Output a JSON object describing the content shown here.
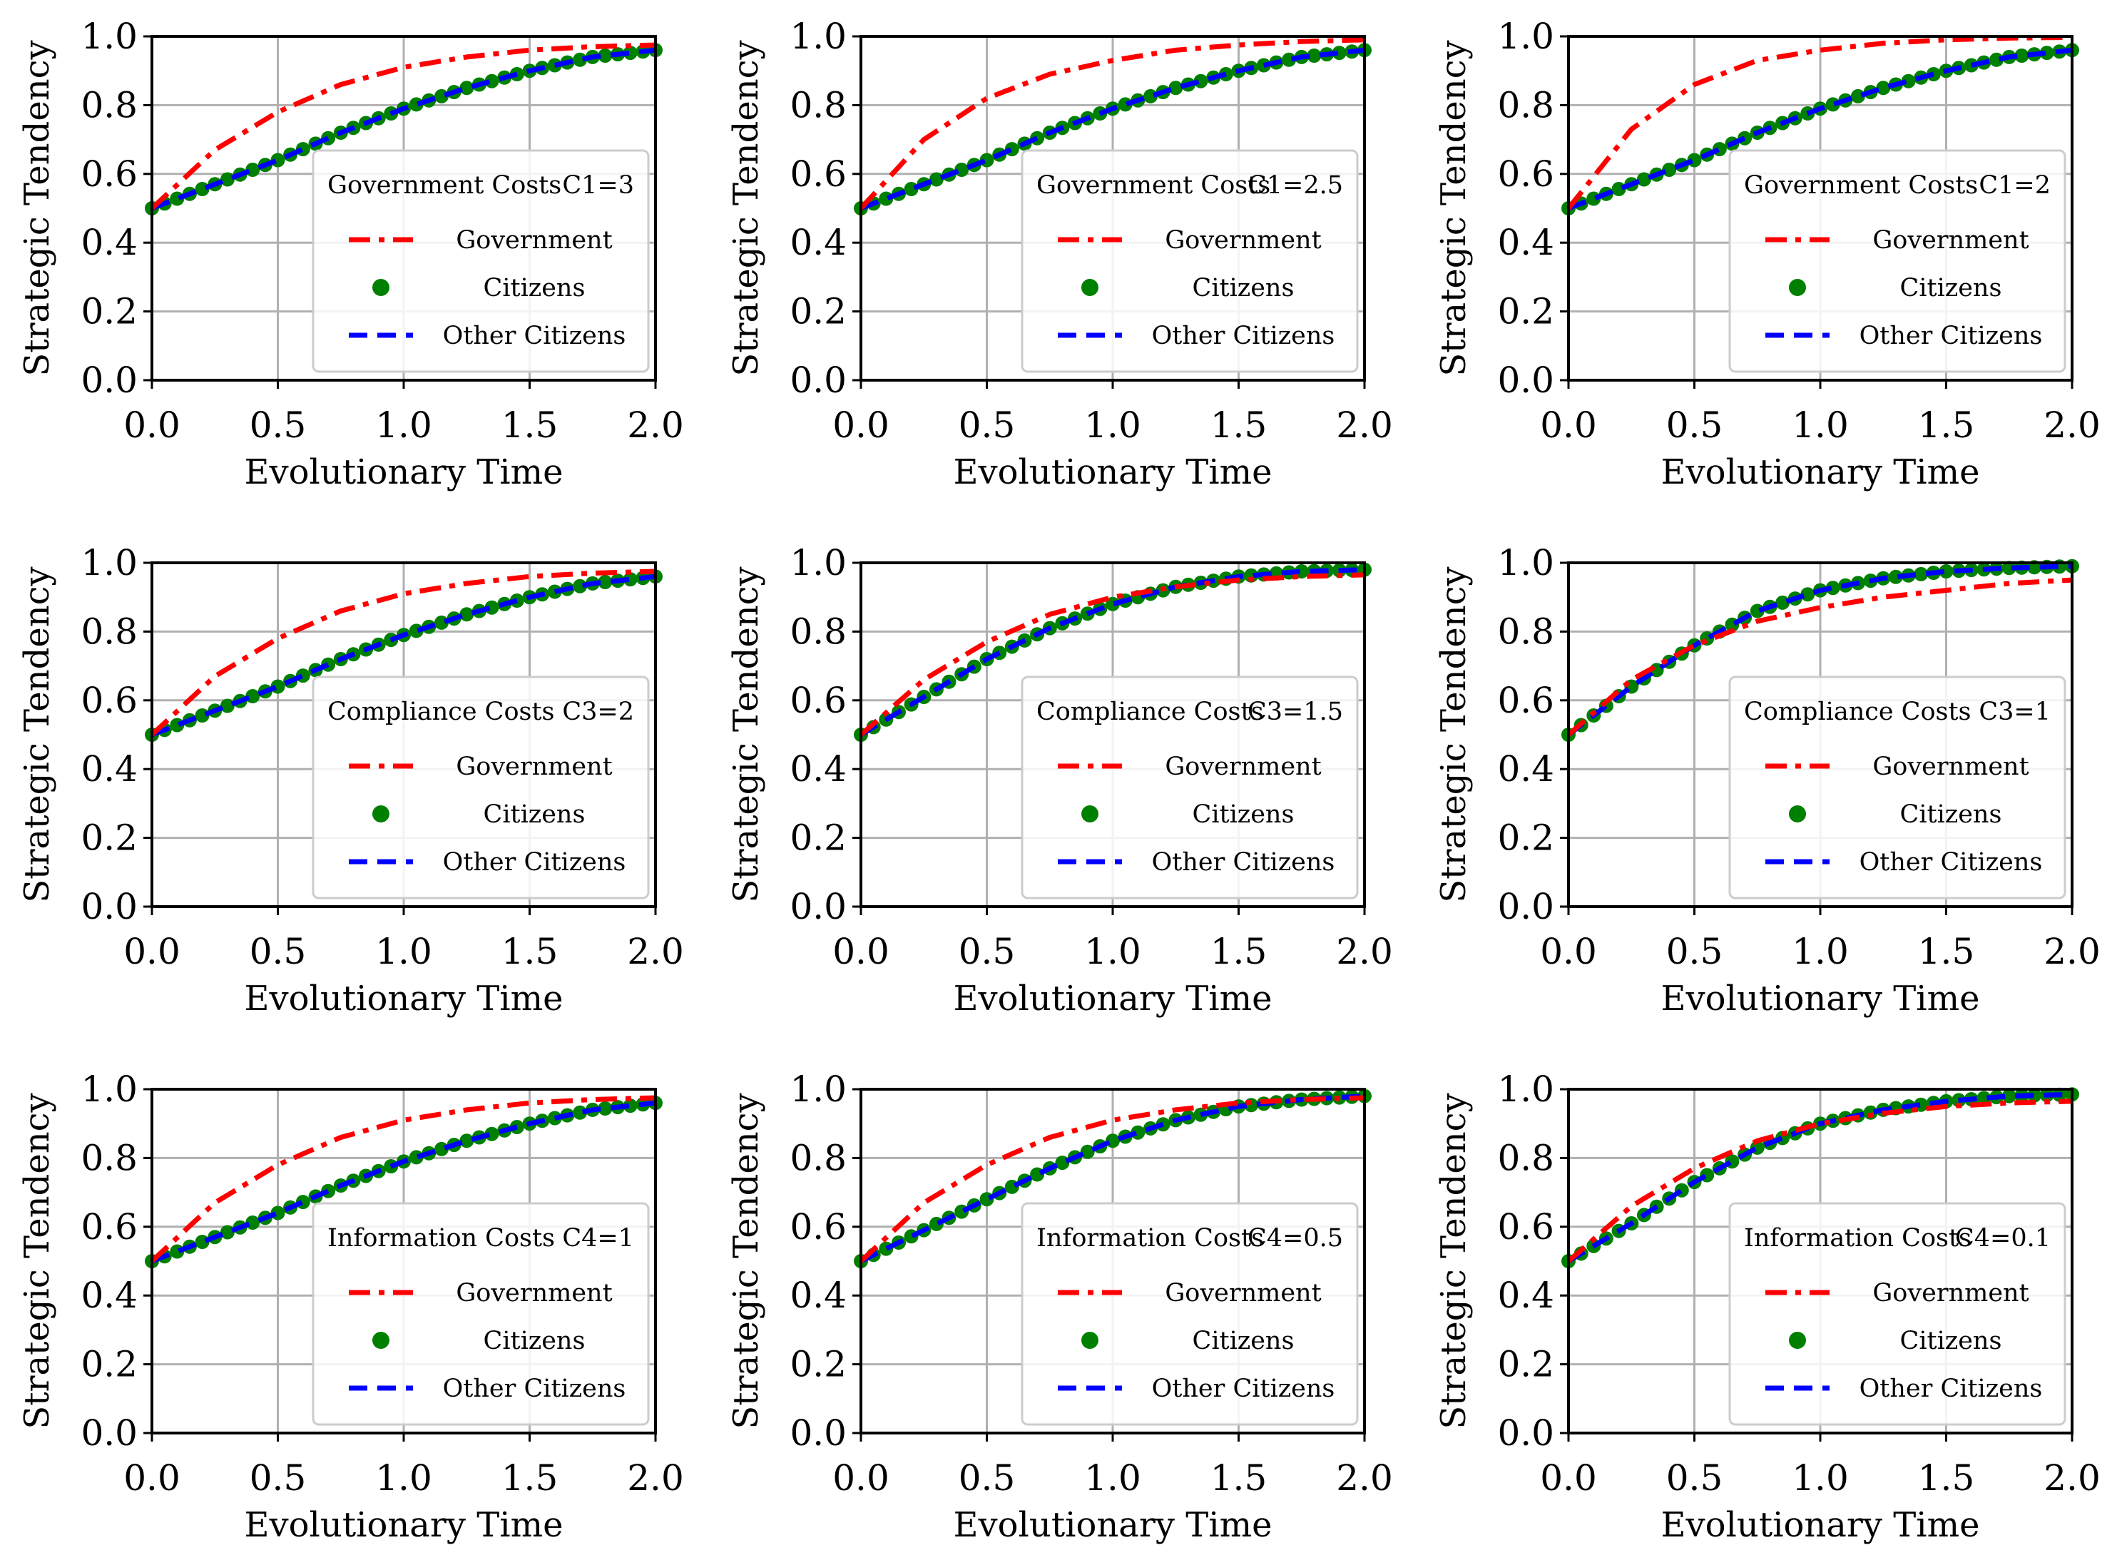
{
  "figure": {
    "xlabel": "Evolutionary Time",
    "ylabel": "Strategic Tendency",
    "xticks": [
      "0.0",
      "0.5",
      "1.0",
      "1.5",
      "2.0"
    ],
    "yticks": [
      "0.0",
      "0.2",
      "0.4",
      "0.6",
      "0.8",
      "1.0"
    ],
    "series_names": [
      "Government",
      "Citizens",
      "Other Citizens"
    ],
    "colors": {
      "government": "#ff0000",
      "citizens": "#008000",
      "other_citizens": "#0000ff"
    }
  },
  "chart_data": [
    {
      "type": "line",
      "legend_title": "Government Costs",
      "param": "C1=3",
      "xlim": [
        0,
        2
      ],
      "ylim": [
        0,
        1
      ],
      "x": [
        0,
        0.25,
        0.5,
        0.75,
        1.0,
        1.25,
        1.5,
        1.75,
        2.0
      ],
      "series": [
        {
          "name": "Government",
          "values": [
            0.5,
            0.67,
            0.78,
            0.86,
            0.91,
            0.94,
            0.96,
            0.97,
            0.975
          ]
        },
        {
          "name": "Citizens",
          "values": [
            0.5,
            0.57,
            0.64,
            0.72,
            0.79,
            0.85,
            0.9,
            0.94,
            0.96
          ]
        },
        {
          "name": "Other Citizens",
          "values": [
            0.5,
            0.57,
            0.64,
            0.72,
            0.79,
            0.85,
            0.9,
            0.94,
            0.96
          ]
        }
      ]
    },
    {
      "type": "line",
      "legend_title": "Government Costs",
      "param": "C1=2.5",
      "xlim": [
        0,
        2
      ],
      "ylim": [
        0,
        1
      ],
      "x": [
        0,
        0.25,
        0.5,
        0.75,
        1.0,
        1.25,
        1.5,
        1.75,
        2.0
      ],
      "series": [
        {
          "name": "Government",
          "values": [
            0.5,
            0.7,
            0.82,
            0.89,
            0.93,
            0.96,
            0.975,
            0.985,
            0.99
          ]
        },
        {
          "name": "Citizens",
          "values": [
            0.5,
            0.57,
            0.64,
            0.72,
            0.79,
            0.85,
            0.9,
            0.94,
            0.96
          ]
        },
        {
          "name": "Other Citizens",
          "values": [
            0.5,
            0.57,
            0.64,
            0.72,
            0.79,
            0.85,
            0.9,
            0.94,
            0.96
          ]
        }
      ]
    },
    {
      "type": "line",
      "legend_title": "Government Costs",
      "param": "C1=2",
      "xlim": [
        0,
        2
      ],
      "ylim": [
        0,
        1
      ],
      "x": [
        0,
        0.25,
        0.5,
        0.75,
        1.0,
        1.25,
        1.5,
        1.75,
        2.0
      ],
      "series": [
        {
          "name": "Government",
          "values": [
            0.5,
            0.73,
            0.86,
            0.93,
            0.96,
            0.98,
            0.99,
            0.995,
            0.997
          ]
        },
        {
          "name": "Citizens",
          "values": [
            0.5,
            0.57,
            0.64,
            0.72,
            0.79,
            0.85,
            0.9,
            0.94,
            0.96
          ]
        },
        {
          "name": "Other Citizens",
          "values": [
            0.5,
            0.57,
            0.64,
            0.72,
            0.79,
            0.85,
            0.9,
            0.94,
            0.96
          ]
        }
      ]
    },
    {
      "type": "line",
      "legend_title": "Compliance Costs",
      "param": "C3=2",
      "xlim": [
        0,
        2
      ],
      "ylim": [
        0,
        1
      ],
      "x": [
        0,
        0.25,
        0.5,
        0.75,
        1.0,
        1.25,
        1.5,
        1.75,
        2.0
      ],
      "series": [
        {
          "name": "Government",
          "values": [
            0.5,
            0.67,
            0.78,
            0.86,
            0.91,
            0.94,
            0.96,
            0.97,
            0.975
          ]
        },
        {
          "name": "Citizens",
          "values": [
            0.5,
            0.57,
            0.64,
            0.72,
            0.79,
            0.85,
            0.9,
            0.94,
            0.96
          ]
        },
        {
          "name": "Other Citizens",
          "values": [
            0.5,
            0.57,
            0.64,
            0.72,
            0.79,
            0.85,
            0.9,
            0.94,
            0.96
          ]
        }
      ]
    },
    {
      "type": "line",
      "legend_title": "Compliance Costs",
      "param": "C3=1.5",
      "xlim": [
        0,
        2
      ],
      "ylim": [
        0,
        1
      ],
      "x": [
        0,
        0.25,
        0.5,
        0.75,
        1.0,
        1.25,
        1.5,
        1.75,
        2.0
      ],
      "series": [
        {
          "name": "Government",
          "values": [
            0.5,
            0.66,
            0.77,
            0.85,
            0.9,
            0.93,
            0.95,
            0.96,
            0.965
          ]
        },
        {
          "name": "Citizens",
          "values": [
            0.5,
            0.61,
            0.72,
            0.81,
            0.88,
            0.93,
            0.96,
            0.975,
            0.98
          ]
        },
        {
          "name": "Other Citizens",
          "values": [
            0.5,
            0.61,
            0.72,
            0.81,
            0.88,
            0.93,
            0.96,
            0.975,
            0.98
          ]
        }
      ]
    },
    {
      "type": "line",
      "legend_title": "Compliance Costs",
      "param": "C3=1",
      "xlim": [
        0,
        2
      ],
      "ylim": [
        0,
        1
      ],
      "x": [
        0,
        0.25,
        0.5,
        0.75,
        1.0,
        1.25,
        1.5,
        1.75,
        2.0
      ],
      "series": [
        {
          "name": "Government",
          "values": [
            0.5,
            0.66,
            0.76,
            0.83,
            0.87,
            0.9,
            0.92,
            0.94,
            0.95
          ]
        },
        {
          "name": "Citizens",
          "values": [
            0.5,
            0.64,
            0.76,
            0.86,
            0.92,
            0.955,
            0.975,
            0.985,
            0.99
          ]
        },
        {
          "name": "Other Citizens",
          "values": [
            0.5,
            0.64,
            0.76,
            0.86,
            0.92,
            0.955,
            0.975,
            0.985,
            0.99
          ]
        }
      ]
    },
    {
      "type": "line",
      "legend_title": "Information Costs",
      "param": "C4=1",
      "xlim": [
        0,
        2
      ],
      "ylim": [
        0,
        1
      ],
      "x": [
        0,
        0.25,
        0.5,
        0.75,
        1.0,
        1.25,
        1.5,
        1.75,
        2.0
      ],
      "series": [
        {
          "name": "Government",
          "values": [
            0.5,
            0.67,
            0.78,
            0.86,
            0.91,
            0.94,
            0.96,
            0.97,
            0.975
          ]
        },
        {
          "name": "Citizens",
          "values": [
            0.5,
            0.57,
            0.64,
            0.72,
            0.79,
            0.85,
            0.9,
            0.94,
            0.96
          ]
        },
        {
          "name": "Other Citizens",
          "values": [
            0.5,
            0.57,
            0.64,
            0.72,
            0.79,
            0.85,
            0.9,
            0.94,
            0.96
          ]
        }
      ]
    },
    {
      "type": "line",
      "legend_title": "Information Costs",
      "param": "C4=0.5",
      "xlim": [
        0,
        2
      ],
      "ylim": [
        0,
        1
      ],
      "x": [
        0,
        0.25,
        0.5,
        0.75,
        1.0,
        1.25,
        1.5,
        1.75,
        2.0
      ],
      "series": [
        {
          "name": "Government",
          "values": [
            0.5,
            0.67,
            0.78,
            0.86,
            0.91,
            0.94,
            0.96,
            0.97,
            0.975
          ]
        },
        {
          "name": "Citizens",
          "values": [
            0.5,
            0.59,
            0.68,
            0.77,
            0.85,
            0.91,
            0.95,
            0.97,
            0.98
          ]
        },
        {
          "name": "Other Citizens",
          "values": [
            0.5,
            0.59,
            0.68,
            0.77,
            0.85,
            0.91,
            0.95,
            0.97,
            0.98
          ]
        }
      ]
    },
    {
      "type": "line",
      "legend_title": "Information Costs",
      "param": "C4=0.1",
      "xlim": [
        0,
        2
      ],
      "ylim": [
        0,
        1
      ],
      "x": [
        0,
        0.25,
        0.5,
        0.75,
        1.0,
        1.25,
        1.5,
        1.75,
        2.0
      ],
      "series": [
        {
          "name": "Government",
          "values": [
            0.5,
            0.66,
            0.77,
            0.85,
            0.9,
            0.93,
            0.95,
            0.96,
            0.965
          ]
        },
        {
          "name": "Citizens",
          "values": [
            0.5,
            0.61,
            0.73,
            0.83,
            0.9,
            0.94,
            0.965,
            0.98,
            0.985
          ]
        },
        {
          "name": "Other Citizens",
          "values": [
            0.5,
            0.61,
            0.73,
            0.83,
            0.9,
            0.94,
            0.965,
            0.98,
            0.985
          ]
        }
      ]
    }
  ]
}
